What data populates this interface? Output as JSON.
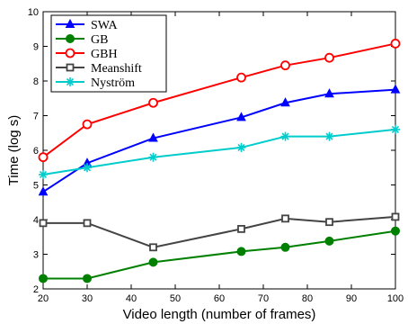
{
  "chart_data": {
    "type": "line",
    "title": "",
    "xlabel": "Video length (number of frames)",
    "ylabel": "Time (log s)",
    "xlim": [
      20,
      100
    ],
    "ylim": [
      2,
      10
    ],
    "xticks": [
      20,
      30,
      40,
      50,
      60,
      70,
      80,
      90,
      100
    ],
    "yticks": [
      2,
      3,
      4,
      5,
      6,
      7,
      8,
      9,
      10
    ],
    "grid": false,
    "legend_position": "top-left",
    "series": [
      {
        "name": "SWA",
        "color": "#0000ff",
        "marker": "triangle",
        "x": [
          20,
          30,
          45,
          65,
          75,
          85,
          100
        ],
        "values": [
          4.8,
          5.63,
          6.35,
          6.95,
          7.37,
          7.63,
          7.75
        ]
      },
      {
        "name": "GB",
        "color": "#008000",
        "marker": "circle-filled",
        "x": [
          20,
          30,
          45,
          65,
          75,
          85,
          100
        ],
        "values": [
          2.3,
          2.3,
          2.77,
          3.08,
          3.2,
          3.38,
          3.67
        ]
      },
      {
        "name": "GBH",
        "color": "#ff0000",
        "marker": "circle-open",
        "x": [
          20,
          30,
          45,
          65,
          75,
          85,
          100
        ],
        "values": [
          5.8,
          6.75,
          7.37,
          8.1,
          8.45,
          8.67,
          9.08
        ]
      },
      {
        "name": "Meanshift",
        "color": "#444444",
        "marker": "square",
        "x": [
          20,
          30,
          45,
          65,
          75,
          85,
          100
        ],
        "values": [
          3.9,
          3.9,
          3.2,
          3.73,
          4.03,
          3.93,
          4.08
        ]
      },
      {
        "name": "Nyström",
        "color": "#00cccc",
        "marker": "star",
        "x": [
          20,
          30,
          45,
          65,
          75,
          85,
          100
        ],
        "values": [
          5.3,
          5.5,
          5.8,
          6.08,
          6.4,
          6.4,
          6.6
        ]
      }
    ]
  }
}
